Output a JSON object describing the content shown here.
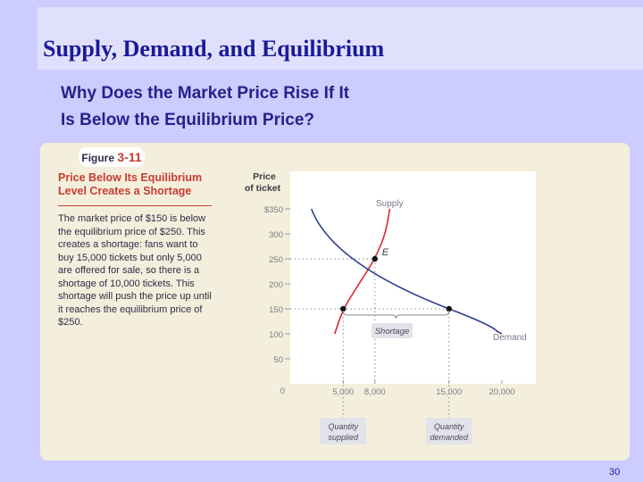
{
  "slide": {
    "title": "Supply, Demand, and Equilibrium",
    "subtitle_line1": "Why Does the Market Price Rise If It",
    "subtitle_line2": "Is Below the Equilibrium Price?",
    "page_number": "30"
  },
  "figure": {
    "label": "Figure",
    "number": "3-11",
    "heading": "Price Below Its Equilibrium Level Creates a Shortage",
    "caption": "The market price of $150 is below the equilibrium price of $250. This creates a shortage: fans want to buy 15,000 tickets but only 5,000 are offered for sale, so there is a shortage of 10,000 tickets. This shortage will push the price up until it reaches the equilibrium price of $250."
  },
  "colors": {
    "supply": "#d9262b",
    "demand": "#2e3f8f",
    "panel": "#f4efdc",
    "heading": "#c83c32"
  },
  "chart_data": {
    "type": "line",
    "ylabel_line1": "Price",
    "ylabel_line2": "of ticket",
    "y_ticks": [
      "$350",
      "300",
      "250",
      "200",
      "150",
      "100",
      "50",
      "0"
    ],
    "y_tick_values": [
      350,
      300,
      250,
      200,
      150,
      100,
      50,
      0
    ],
    "x_ticks": [
      "5,000",
      "8,000",
      "15,000",
      "20,000"
    ],
    "x_tick_values": [
      5000,
      8000,
      15000,
      20000
    ],
    "xlim": [
      0,
      20000
    ],
    "ylim": [
      0,
      350
    ],
    "grid": false,
    "series": [
      {
        "name": "Supply",
        "points": [
          [
            4200,
            100
          ],
          [
            5000,
            150
          ],
          [
            6500,
            200
          ],
          [
            8000,
            250
          ],
          [
            9000,
            300
          ],
          [
            9400,
            350
          ]
        ]
      },
      {
        "name": "Demand",
        "points": [
          [
            2000,
            350
          ],
          [
            3000,
            300
          ],
          [
            5000,
            250
          ],
          [
            8000,
            250
          ],
          [
            11500,
            175
          ],
          [
            15000,
            150
          ],
          [
            20000,
            100
          ]
        ]
      }
    ],
    "equilibrium": {
      "label": "E",
      "x": 8000,
      "y": 250
    },
    "market_price": 150,
    "shortage_label": "Shortage",
    "quantity_supplied": {
      "x": 5000,
      "label_line1": "Quantity",
      "label_line2": "supplied"
    },
    "quantity_demanded": {
      "x": 15000,
      "label_line1": "Quantity",
      "label_line2": "demanded"
    }
  }
}
